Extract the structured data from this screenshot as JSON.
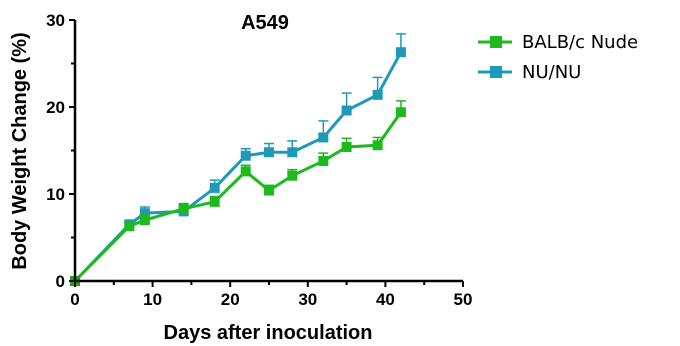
{
  "chart_data": {
    "type": "line",
    "title": "A549",
    "xlabel": "Days after inoculation",
    "ylabel": "Body Weight Change (%)",
    "xlim": [
      0,
      50
    ],
    "ylim": [
      0,
      30
    ],
    "xticks": [
      "0",
      "10",
      "20",
      "30",
      "40",
      "50"
    ],
    "yticks": [
      "0",
      "10",
      "20",
      "30"
    ],
    "grid": false,
    "legend_position": "top-right",
    "series": [
      {
        "name": "BALB/c Nude",
        "color": "#1db91d",
        "x": [
          0,
          7,
          9,
          14,
          18,
          22,
          25,
          28,
          32,
          35,
          39,
          42
        ],
        "y": [
          0,
          6.3,
          7.0,
          8.3,
          9.1,
          12.6,
          10.4,
          12.1,
          13.8,
          15.4,
          15.6,
          19.4
        ],
        "error": [
          0,
          0.5,
          0.6,
          0.6,
          0.6,
          0.7,
          0.6,
          0.7,
          0.9,
          1.0,
          0.9,
          1.3
        ]
      },
      {
        "name": "NU/NU",
        "color": "#1e9ab8",
        "x": [
          0,
          7,
          9,
          14,
          18,
          22,
          25,
          28,
          32,
          35,
          39,
          42
        ],
        "y": [
          0,
          6.5,
          7.8,
          8.0,
          10.7,
          14.4,
          14.8,
          14.8,
          16.5,
          19.6,
          21.4,
          26.3
        ],
        "error": [
          0,
          0.5,
          0.7,
          0.8,
          0.9,
          0.8,
          1.0,
          1.3,
          1.9,
          2.0,
          2.0,
          2.1
        ]
      }
    ]
  }
}
